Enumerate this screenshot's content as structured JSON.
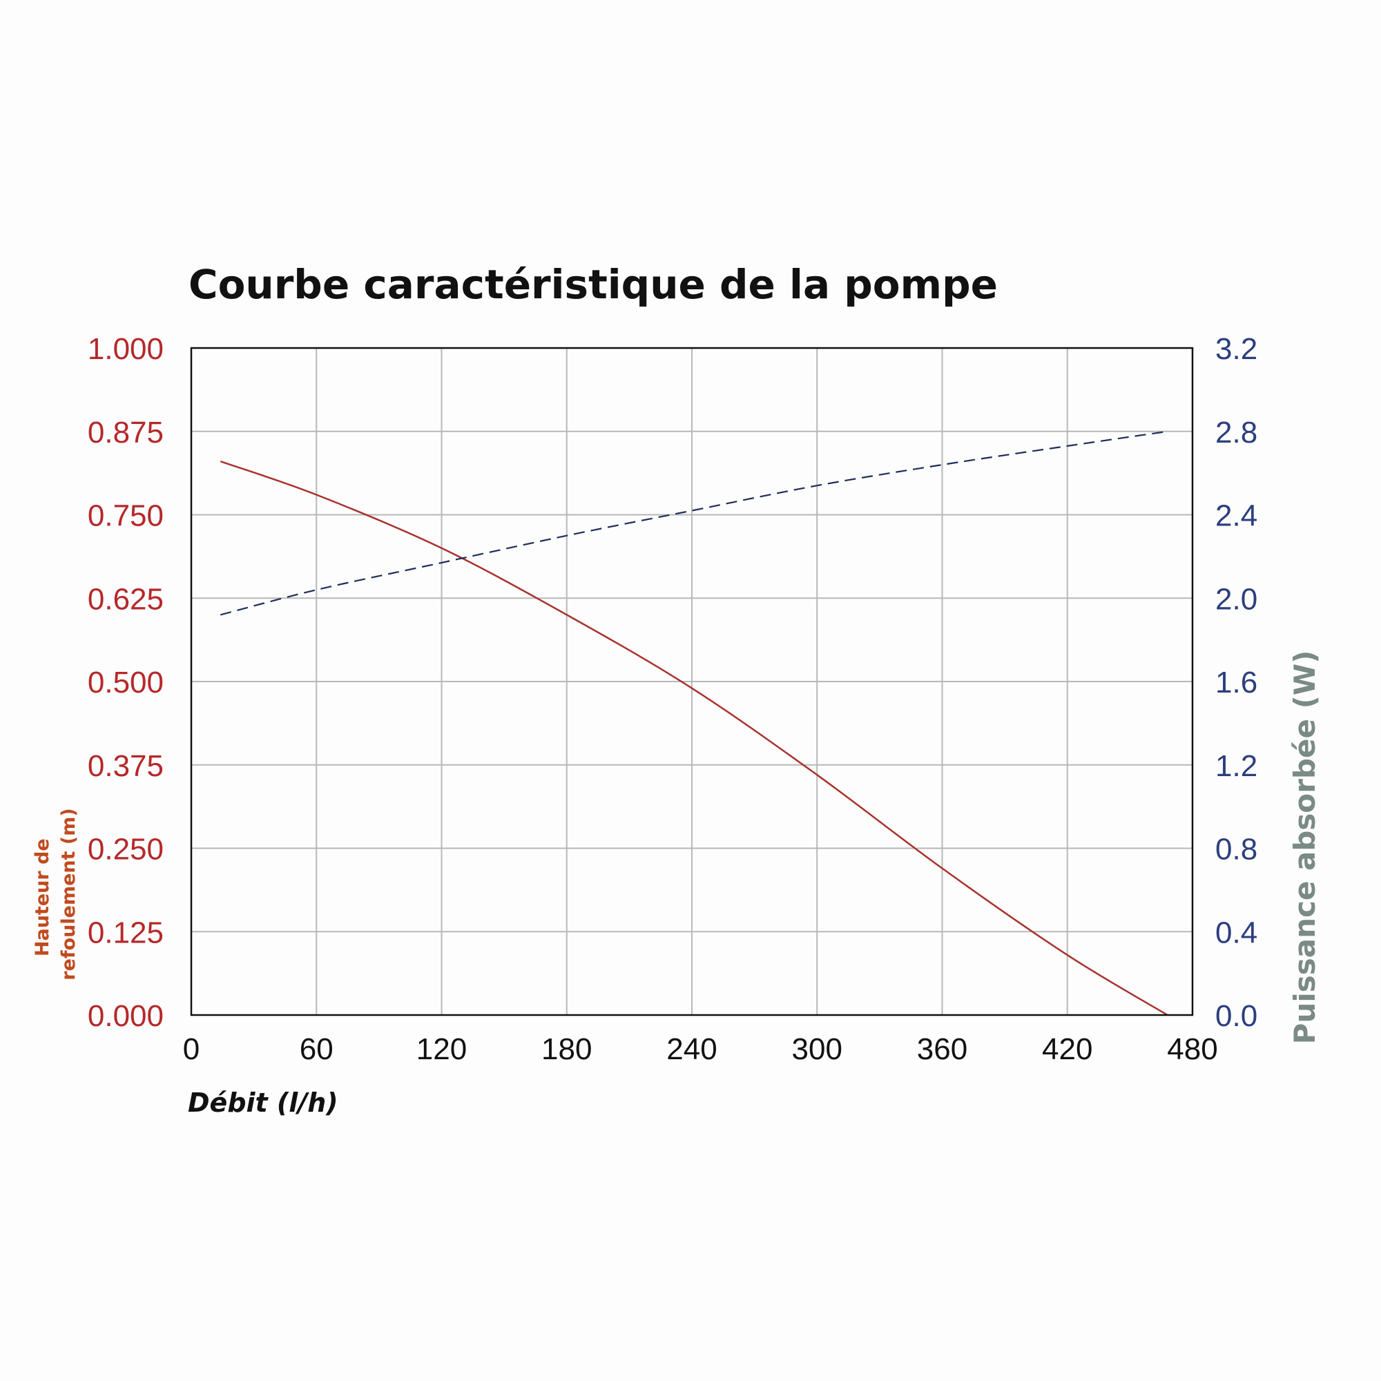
{
  "chart_data": {
    "type": "line",
    "title": "Courbe caractéristique de la pompe",
    "xlabel": "Débit (l/h)",
    "ylabel_left": [
      "Hauteur de",
      "refoulement (m)"
    ],
    "ylabel_right": "Puissance absorbée (W)",
    "xlim": [
      0,
      480
    ],
    "ylim_left": [
      0,
      1
    ],
    "ylim_right": [
      0,
      3.2
    ],
    "x_ticks": [
      "0",
      "60",
      "120",
      "180",
      "240",
      "300",
      "360",
      "420",
      "480"
    ],
    "y_left_ticks": [
      "0.000",
      "0.125",
      "0.250",
      "0.375",
      "0.500",
      "0.625",
      "0.750",
      "0.875",
      "1.000"
    ],
    "y_right_ticks": [
      "0.0",
      "0.4",
      "0.8",
      "1.2",
      "1.6",
      "2.0",
      "2.4",
      "2.8",
      "3.2"
    ],
    "grid": true,
    "colors": {
      "left_axis": "#b5282a",
      "right_axis": "#2c3e7e",
      "head_line": "#a8322e",
      "power_line": "#1f2d5a",
      "left_label": "#c04a1e",
      "right_label": "#7a8a85",
      "grid": "#b8b8b8"
    },
    "series": [
      {
        "axis": "left",
        "style": "solid",
        "x": [
          14,
          60,
          120,
          180,
          240,
          300,
          360,
          420,
          468
        ],
        "y": [
          0.83,
          0.78,
          0.7,
          0.6,
          0.49,
          0.36,
          0.22,
          0.09,
          0.0
        ]
      },
      {
        "axis": "right",
        "style": "dashed",
        "x": [
          14,
          60,
          120,
          180,
          240,
          300,
          360,
          420,
          468
        ],
        "y": [
          1.92,
          2.04,
          2.17,
          2.3,
          2.42,
          2.54,
          2.64,
          2.73,
          2.8
        ]
      }
    ]
  }
}
